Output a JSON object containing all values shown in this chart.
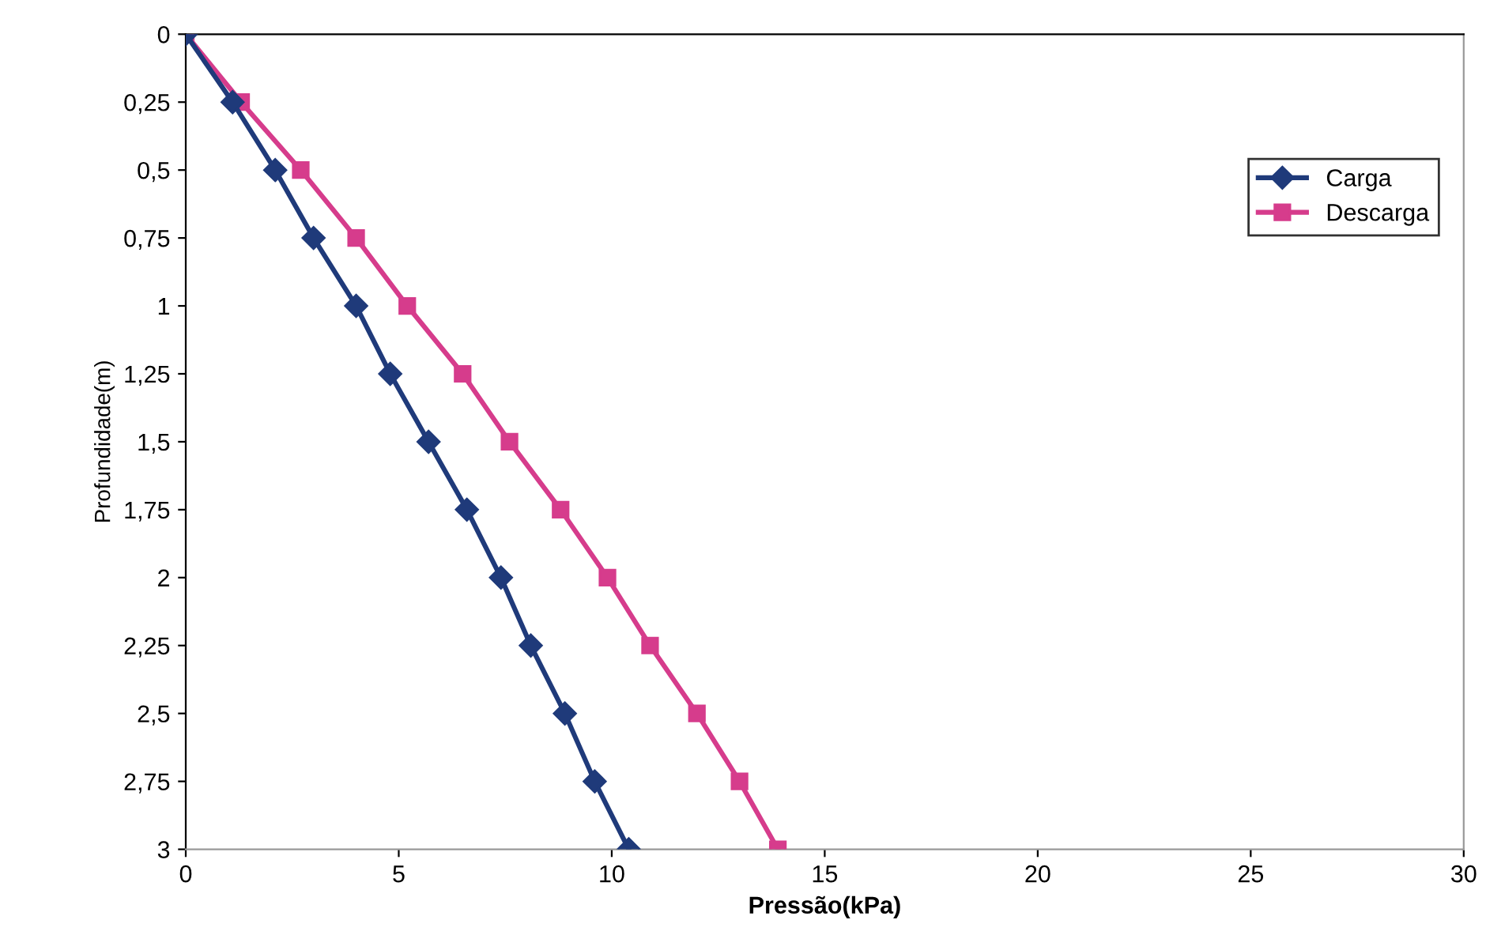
{
  "chart_data": {
    "type": "line",
    "xlabel": "Pressão(kPa)",
    "ylabel": "Profundidade(m)",
    "series": [
      {
        "name": "Carga",
        "color": "#1f3a7a",
        "marker": "diamond",
        "x": [
          0,
          1.1,
          2.1,
          3.0,
          4.0,
          4.8,
          5.7,
          6.6,
          7.4,
          8.1,
          8.9,
          9.6,
          10.4
        ],
        "values": [
          0,
          0.25,
          0.5,
          0.75,
          1,
          1.25,
          1.5,
          1.75,
          2,
          2.25,
          2.5,
          2.75,
          3
        ]
      },
      {
        "name": "Descarga",
        "color": "#d63c8c",
        "marker": "square",
        "x": [
          0,
          1.3,
          2.7,
          4.0,
          5.2,
          6.5,
          7.6,
          8.8,
          9.9,
          10.9,
          12.0,
          13.0,
          13.9
        ],
        "values": [
          0,
          0.25,
          0.5,
          0.75,
          1,
          1.25,
          1.5,
          1.75,
          2,
          2.25,
          2.5,
          2.75,
          3
        ]
      }
    ],
    "xlim": [
      0,
      30
    ],
    "xticks": [
      0,
      5,
      10,
      15,
      20,
      25,
      30
    ],
    "ylim": [
      3,
      0
    ],
    "yticks": [
      {
        "value": 0,
        "label": "0"
      },
      {
        "value": 0.25,
        "label": "0,25"
      },
      {
        "value": 0.5,
        "label": "0,5"
      },
      {
        "value": 0.75,
        "label": "0,75"
      },
      {
        "value": 1,
        "label": "1"
      },
      {
        "value": 1.25,
        "label": "1,25"
      },
      {
        "value": 1.5,
        "label": "1,5"
      },
      {
        "value": 1.75,
        "label": "1,75"
      },
      {
        "value": 2,
        "label": "2"
      },
      {
        "value": 2.25,
        "label": "2,25"
      },
      {
        "value": 2.5,
        "label": "2,5"
      },
      {
        "value": 2.75,
        "label": "2,75"
      },
      {
        "value": 3,
        "label": "3"
      }
    ],
    "legend": "right",
    "line_style": "solid"
  }
}
